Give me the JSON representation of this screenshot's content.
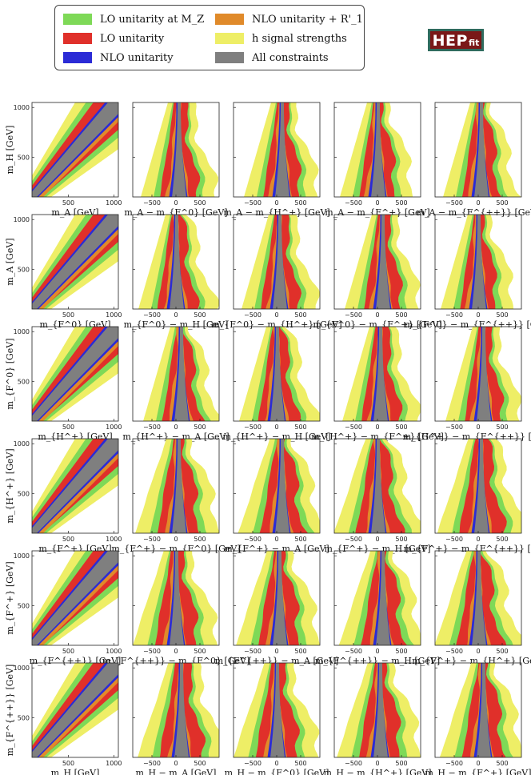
{
  "legend": {
    "items": [
      {
        "label": "LO unitarity at M_Z",
        "color": "#7ed957"
      },
      {
        "label": "LO unitarity",
        "color": "#e0302a"
      },
      {
        "label": "NLO unitarity",
        "color": "#2b2bd6"
      },
      {
        "label": "NLO unitarity + R'_1",
        "color": "#e08a2a"
      },
      {
        "label": "h signal strengths",
        "color": "#eeee66"
      },
      {
        "label": "All constraints",
        "color": "#7f7f7f"
      }
    ]
  },
  "logo": {
    "main": "HEP",
    "sub": "fit"
  },
  "chart_data": {
    "type": "heatmap",
    "rows": [
      {
        "ylabel": "m_H [GeV]",
        "xlabels": [
          "m_A [GeV]",
          "m_A − m_{F^0} [GeV]",
          "m_A − m_{H^+} [GeV]",
          "m_A − m_{F^+} [GeV]",
          "m_A − m_{F^{++}} [GeV]"
        ]
      },
      {
        "ylabel": "m_A [GeV]",
        "xlabels": [
          "m_{F^0} [GeV]",
          "m_{F^0} − m_H [GeV]",
          "m_{F^0} − m_{H^+} [GeV]",
          "m_{F^0} − m_{F^+} [GeV]",
          "m_{F^0} − m_{F^{++}} [GeV]"
        ]
      },
      {
        "ylabel": "m_{F^0} [GeV]",
        "xlabels": [
          "m_{H^+} [GeV]",
          "m_{H^+} − m_A [GeV]",
          "m_{H^+} − m_H [GeV]",
          "m_{H^+} − m_{F^+} [GeV]",
          "m_{H^+} − m_{F^{++}} [GeV]"
        ]
      },
      {
        "ylabel": "m_{H^+} [GeV]",
        "xlabels": [
          "m_{F^+} [GeV]",
          "m_{F^+} − m_{F^0} [GeV]",
          "m_{F^+} − m_A [GeV]",
          "m_{F^+} − m_H [GeV]",
          "m_{F^+} − m_{F^{++}} [GeV]"
        ]
      },
      {
        "ylabel": "m_{F^+} [GeV]",
        "xlabels": [
          "m_{F^{++}} [GeV]",
          "m_{F^{++}} − m_{F^0} [GeV]",
          "m_{F^{++}} − m_A [GeV]",
          "m_{F^{++}} − m_H [GeV]",
          "m_{F^+} − m_{H^+} [GeV]"
        ]
      },
      {
        "ylabel": "m_{F^{++}} [GeV]",
        "xlabels": [
          "m_H [GeV]",
          "m_H − m_A [GeV]",
          "m_H − m_{F^0} [GeV]",
          "m_H − m_{H^+} [GeV]",
          "m_H − m_{F^+} [GeV]"
        ]
      }
    ],
    "first_column": {
      "xlim": [
        100,
        1050
      ],
      "ylim": [
        100,
        1050
      ],
      "xticks": [
        500,
        1000
      ],
      "yticks": [
        500,
        1000
      ]
    },
    "other_columns": {
      "xlim": [
        -900,
        900
      ],
      "ylim": [
        100,
        1050
      ],
      "xticks": [
        -500,
        0,
        500
      ],
      "yticks": [
        500,
        1000
      ]
    }
  }
}
